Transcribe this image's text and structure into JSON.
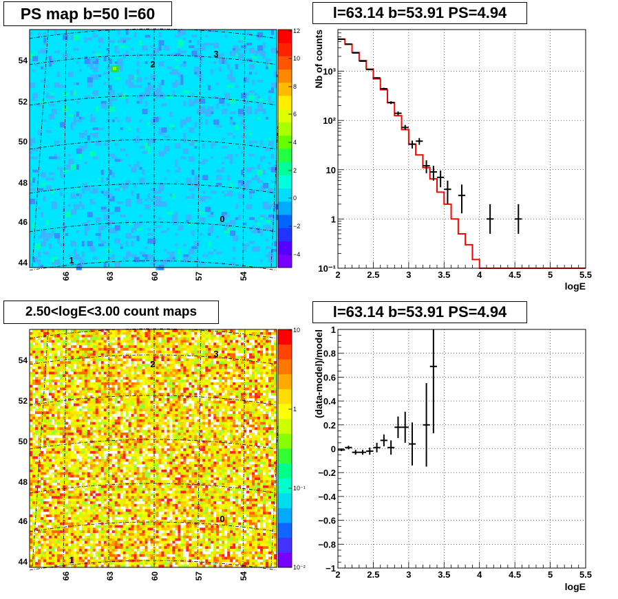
{
  "panels": {
    "ps_map": {
      "title": "PS map b=50 l=60",
      "yticks": [
        "54",
        "52",
        "50",
        "48",
        "46",
        "44"
      ],
      "xticks": [
        "66",
        "63",
        "60",
        "57",
        "54"
      ],
      "source_labels": [
        "1",
        "2",
        "3",
        "0"
      ],
      "colorbar_ticks": [
        "12",
        "10",
        "8",
        "6",
        "4",
        "2",
        "0",
        "−2",
        "−4"
      ],
      "background_color": "#00e5ff"
    },
    "spectrum": {
      "title": "l=63.14 b=53.91 PS=4.94"
    },
    "count_map": {
      "title": "2.50<logE<3.00 count maps",
      "yticks": [
        "54",
        "52",
        "50",
        "48",
        "46",
        "44"
      ],
      "xticks": [
        "66",
        "63",
        "60",
        "57",
        "54"
      ],
      "source_labels": [
        "1",
        "2",
        "3",
        "0"
      ],
      "colorbar_ticks": [
        "10",
        "1",
        "10⁻¹",
        "10⁻²"
      ]
    },
    "residuals": {
      "title": "l=63.14 b=53.91 PS=4.94"
    }
  },
  "chart_data": [
    {
      "type": "heatmap",
      "title": "PS map b=50 l=60",
      "ylabel": "",
      "xlabel": "",
      "yticks": [
        54,
        52,
        50,
        48,
        46,
        44
      ],
      "xticks": [
        66,
        63,
        60,
        57,
        54
      ],
      "colorbar_range": [
        -5,
        12
      ],
      "sources": [
        "1",
        "2",
        "3",
        "0"
      ]
    },
    {
      "type": "line",
      "title": "l=63.14 b=53.91 PS=4.94",
      "xlabel": "logE",
      "ylabel": "Nb of counts",
      "xlim": [
        2,
        5.5
      ],
      "ylim": [
        0.1,
        7000
      ],
      "yscale": "log",
      "grid": true,
      "xticks": [
        2,
        2.5,
        3,
        3.5,
        4,
        4.5,
        5,
        5.5
      ],
      "yticks_labels": [
        "10⁻¹",
        "1",
        "10",
        "10²",
        "10³"
      ],
      "series": [
        {
          "style": "step",
          "color": "#ff0000",
          "x": [
            2.0,
            2.1,
            2.2,
            2.3,
            2.4,
            2.5,
            2.6,
            2.7,
            2.8,
            2.9,
            3.0,
            3.1,
            3.2,
            3.3,
            3.4,
            3.5,
            3.6,
            3.7,
            3.8,
            3.9,
            4.0,
            4.1,
            4.2,
            4.3,
            4.4,
            4.5,
            4.6,
            4.7,
            4.8,
            4.9,
            5.0,
            5.1,
            5.2,
            5.3,
            5.4
          ],
          "values": [
            4500,
            3500,
            2400,
            1650,
            1100,
            700,
            420,
            230,
            125,
            65,
            33,
            20,
            11,
            6.5,
            3.5,
            2.0,
            1.0,
            0.5,
            0.3,
            0.15,
            0.1,
            0.1,
            0.1,
            0.1,
            0.1,
            0.1,
            0.1,
            0.1,
            0.1,
            0.1,
            0.1,
            0.1,
            0.1,
            0.1,
            0.1
          ]
        },
        {
          "style": "points",
          "color": "#000000",
          "x": [
            2.05,
            2.15,
            2.25,
            2.35,
            2.45,
            2.55,
            2.65,
            2.75,
            2.85,
            2.95,
            3.05,
            3.15,
            3.25,
            3.35,
            3.45,
            3.55,
            3.75,
            4.15,
            4.55
          ],
          "values": [
            4450,
            3550,
            2350,
            1600,
            1080,
            730,
            440,
            230,
            140,
            72,
            33,
            38,
            12,
            9,
            7,
            4,
            3,
            1,
            1
          ],
          "err_low": [
            4385,
            3490,
            2300,
            1560,
            1048,
            703,
            419,
            215,
            128,
            64,
            27,
            32,
            8.5,
            6,
            4.4,
            2,
            1.3,
            0.5,
            0.5
          ],
          "err_high": [
            4517,
            3610,
            2400,
            1640,
            1113,
            757,
            461,
            245,
            152,
            81,
            39,
            44,
            15.5,
            12,
            9.6,
            6,
            5,
            2,
            2
          ]
        }
      ]
    },
    {
      "type": "heatmap",
      "title": "2.50<logE<3.00 count maps",
      "yticks": [
        54,
        52,
        50,
        48,
        46,
        44
      ],
      "xticks": [
        66,
        63,
        60,
        57,
        54
      ],
      "colorbar_scale": "log",
      "colorbar_range": [
        0.01,
        10
      ],
      "sources": [
        "1",
        "2",
        "3",
        "0"
      ]
    },
    {
      "type": "scatter",
      "title": "l=63.14 b=53.91 PS=4.94",
      "xlabel": "logE",
      "ylabel": "(data-model)/model",
      "xlim": [
        2,
        5.5
      ],
      "ylim": [
        -1,
        1
      ],
      "grid": true,
      "xticks": [
        2,
        2.5,
        3,
        3.5,
        4,
        4.5,
        5,
        5.5
      ],
      "yticks": [
        -1,
        -0.8,
        -0.6,
        -0.4,
        -0.2,
        0,
        0.2,
        0.4,
        0.6,
        0.8,
        1
      ],
      "series": [
        {
          "x": [
            2.05,
            2.15,
            2.25,
            2.35,
            2.45,
            2.55,
            2.65,
            2.75,
            2.85,
            2.95,
            3.05,
            3.25,
            3.35
          ],
          "values": [
            -0.01,
            0.01,
            -0.03,
            -0.03,
            -0.02,
            0.01,
            0.07,
            0.01,
            0.18,
            0.18,
            0.04,
            0.2,
            0.69
          ],
          "err": [
            0.01,
            0.015,
            0.02,
            0.02,
            0.03,
            0.04,
            0.05,
            0.06,
            0.09,
            0.13,
            0.18,
            0.35,
            0.56
          ]
        }
      ]
    }
  ]
}
